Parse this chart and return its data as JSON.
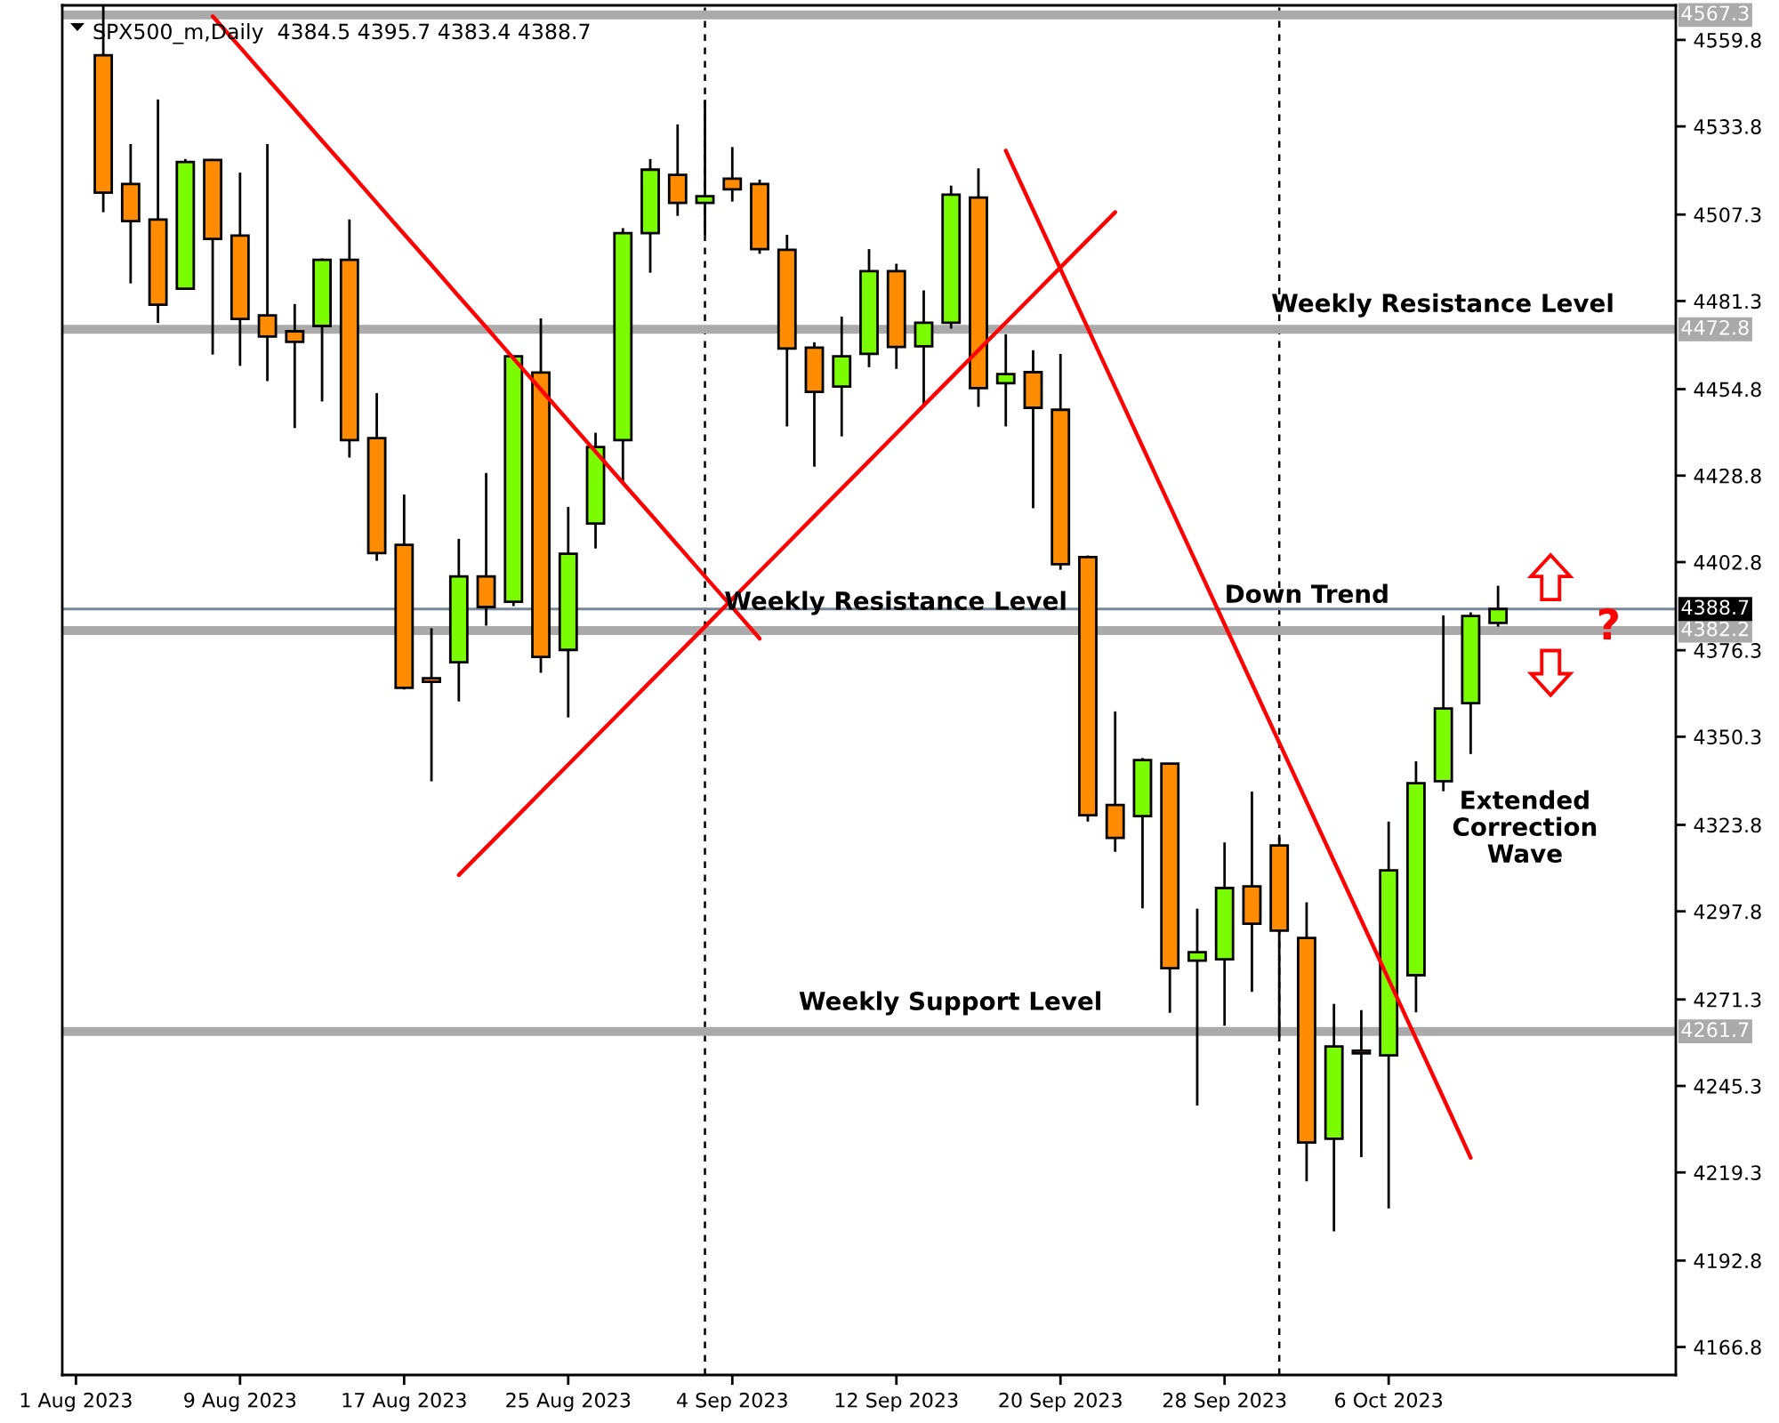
{
  "chart_data": {
    "type": "candlestick",
    "title": "SPX500_m,Daily  4384.5 4395.7 4383.4 4388.7",
    "categories": [
      "1 Aug 2023",
      null,
      null,
      null,
      null,
      null,
      "9 Aug 2023",
      null,
      null,
      null,
      null,
      null,
      "17 Aug 2023",
      null,
      null,
      null,
      null,
      null,
      "25 Aug 2023",
      null,
      null,
      null,
      null,
      null,
      "4 Sep 2023",
      null,
      null,
      null,
      null,
      null,
      "12 Sep 2023",
      null,
      null,
      null,
      null,
      null,
      "20 Sep 2023",
      null,
      null,
      null,
      null,
      null,
      "28 Sep 2023",
      null,
      null,
      null,
      null,
      null,
      "6 Oct 2023",
      null,
      null,
      null,
      null,
      null,
      null,
      null,
      null,
      null,
      null
    ],
    "ohlc": [
      null,
      [
        4555.2,
        4570.2,
        4508.0,
        4513.9
      ],
      [
        4516.5,
        4528.5,
        4486.6,
        4505.3
      ],
      [
        4505.8,
        4541.9,
        4474.7,
        4480.2
      ],
      [
        4485.0,
        4524.0,
        4485.0,
        4523.1
      ],
      [
        4523.7,
        4524.0,
        4465.2,
        4500.0
      ],
      [
        4501.0,
        4519.9,
        4461.8,
        4475.9
      ],
      [
        4477.0,
        4528.5,
        4457.2,
        4470.6
      ],
      [
        4472.2,
        4480.4,
        4443.1,
        4469.0
      ],
      [
        4473.8,
        4494.1,
        4451.1,
        4493.7
      ],
      [
        4493.7,
        4505.8,
        4434.2,
        4439.5
      ],
      [
        4440.1,
        4453.6,
        4403.2,
        4405.5
      ],
      [
        4408.0,
        4423.1,
        4364.5,
        4365.0
      ],
      [
        4367.9,
        4382.9,
        4336.9,
        4366.8
      ],
      [
        4372.7,
        4409.8,
        4360.9,
        4398.5
      ],
      [
        4398.5,
        4429.6,
        4383.7,
        4389.3
      ],
      [
        4390.9,
        4464.7,
        4389.6,
        4464.7
      ],
      [
        4459.8,
        4476.1,
        4369.5,
        4374.3
      ],
      [
        4376.4,
        4419.4,
        4356.1,
        4405.3
      ],
      [
        4414.4,
        4441.7,
        4406.9,
        4437.4
      ],
      [
        4439.5,
        4503.2,
        4426.9,
        4501.7
      ],
      [
        4501.7,
        4524.0,
        4489.8,
        4520.8
      ],
      [
        4519.2,
        4534.4,
        4506.9,
        4510.8
      ],
      [
        4510.8,
        4541.8,
        4501.2,
        4512.8
      ],
      [
        4518.1,
        4527.6,
        4511.2,
        4514.9
      ],
      [
        4516.5,
        4517.8,
        4495.5,
        4496.9
      ],
      [
        4496.7,
        4501.2,
        4443.6,
        4467.0
      ],
      [
        4467.3,
        4468.9,
        4431.5,
        4454.0
      ],
      [
        4455.6,
        4476.6,
        4440.6,
        4464.7
      ],
      [
        4465.4,
        4496.9,
        4461.4,
        4490.3
      ],
      [
        4490.3,
        4492.5,
        4460.9,
        4467.5
      ],
      [
        4467.7,
        4484.5,
        4449.9,
        4474.8
      ],
      [
        4474.8,
        4516.0,
        4473.0,
        4513.3
      ],
      [
        4512.4,
        4521.2,
        4449.5,
        4455.1
      ],
      [
        4456.6,
        4471.3,
        4443.6,
        4459.3
      ],
      [
        4459.9,
        4466.5,
        4419.0,
        4449.2
      ],
      [
        4448.6,
        4465.4,
        4400.5,
        4402.2
      ],
      [
        4404.3,
        4404.8,
        4324.8,
        4326.7
      ],
      [
        4329.8,
        4357.9,
        4315.7,
        4319.9
      ],
      [
        4326.4,
        4343.9,
        4298.7,
        4343.3
      ],
      [
        4342.2,
        4342.2,
        4267.3,
        4280.7
      ],
      [
        4283.0,
        4298.6,
        4239.4,
        4285.5
      ],
      [
        4283.4,
        4318.5,
        4263.4,
        4304.8
      ],
      [
        4305.3,
        4333.8,
        4273.6,
        4294.1
      ],
      [
        4317.6,
        4320.1,
        4260.0,
        4292.0
      ],
      [
        4289.8,
        4300.5,
        4216.6,
        4228.3
      ],
      [
        4229.4,
        4270.0,
        4201.6,
        4257.2
      ],
      [
        4255.9,
        4268.1,
        4223.9,
        4255.1
      ],
      [
        4254.5,
        4324.8,
        4208.5,
        4310.1
      ],
      [
        4278.6,
        4342.9,
        4267.4,
        4336.3
      ],
      [
        4336.9,
        4386.8,
        4333.9,
        4358.8
      ],
      [
        4360.4,
        4387.7,
        4345.1,
        4386.6
      ],
      [
        4384.5,
        4395.7,
        4383.4,
        4388.7
      ],
      null,
      null,
      null,
      null,
      null,
      null
    ],
    "colors": [
      null,
      "#ff8c00",
      "#ff8c00",
      "#ff8c00",
      "#7cfc00",
      "#ff8c00",
      "#ff8c00",
      "#ff8c00",
      "#ff8c00",
      "#7cfc00",
      "#ff8c00",
      "#ff8c00",
      "#ff8c00",
      "#ff8c00",
      "#7cfc00",
      "#ff8c00",
      "#7cfc00",
      "#ff8c00",
      "#7cfc00",
      "#7cfc00",
      "#7cfc00",
      "#7cfc00",
      "#ff8c00",
      "#7cfc00",
      "#ff8c00",
      "#ff8c00",
      "#ff8c00",
      "#ff8c00",
      "#7cfc00",
      "#7cfc00",
      "#ff8c00",
      "#7cfc00",
      "#7cfc00",
      "#ff8c00",
      "#7cfc00",
      "#ff8c00",
      "#ff8c00",
      "#ff8c00",
      "#ff8c00",
      "#7cfc00",
      "#ff8c00",
      "#7cfc00",
      "#7cfc00",
      "#ff8c00",
      "#ff8c00",
      "#ff8c00",
      "#7cfc00",
      "#ff8c00",
      "#7cfc00",
      "#7cfc00",
      "#7cfc00",
      "#7cfc00",
      "#7cfc00",
      null,
      null,
      null,
      null,
      null,
      null
    ],
    "series": [
      {
        "type": "line",
        "color": "#ff0000",
        "values": [
          null,
          null,
          null,
          null,
          null,
          4566.9,
          4557.6,
          4548.2,
          4538.9,
          4529.5,
          4520.2,
          4510.8,
          4501.4,
          4492.1,
          4482.7,
          4473.4,
          4464.0,
          4454.7,
          4445.3,
          4436.0,
          4426.6,
          4417.3,
          4407.9,
          4398.5,
          4389.2,
          4379.8,
          null,
          null,
          null,
          null,
          null,
          null,
          null,
          null,
          null,
          null,
          null,
          null,
          null,
          null,
          null,
          null,
          null,
          null,
          null,
          null,
          null,
          null,
          null,
          null,
          null,
          null,
          null,
          null,
          null,
          null,
          null,
          null,
          null
        ]
      },
      {
        "type": "line",
        "color": "#ff0000",
        "values": [
          null,
          null,
          null,
          null,
          null,
          null,
          null,
          null,
          null,
          null,
          null,
          null,
          null,
          null,
          4308.7,
          4317.0,
          4325.3,
          4333.6,
          4341.9,
          4350.2,
          4358.5,
          4366.8,
          4375.1,
          4383.4,
          4391.7,
          4400.0,
          4408.3,
          4416.6,
          4424.9,
          4433.2,
          4441.5,
          4449.9,
          4458.2,
          4466.5,
          4474.8,
          4483.1,
          4491.4,
          4499.7,
          4508.0,
          null,
          null,
          null,
          null,
          null,
          null,
          null,
          null,
          null,
          null,
          null,
          null,
          null,
          null,
          null,
          null,
          null,
          null,
          null,
          null
        ]
      },
      {
        "type": "line",
        "color": "#ff0000",
        "values": [
          null,
          null,
          null,
          null,
          null,
          null,
          null,
          null,
          null,
          null,
          null,
          null,
          null,
          null,
          null,
          null,
          null,
          null,
          null,
          null,
          null,
          null,
          null,
          null,
          null,
          null,
          null,
          null,
          null,
          null,
          null,
          null,
          null,
          null,
          4526.5,
          4508.7,
          4490.9,
          4473.1,
          4455.3,
          4437.5,
          4419.7,
          4401.9,
          4384.1,
          4366.3,
          4348.5,
          4330.7,
          4312.9,
          4295.1,
          4277.3,
          4259.5,
          4241.7,
          4223.7,
          null,
          null,
          null,
          null,
          null,
          null,
          null
        ]
      }
    ],
    "ref_lines": [
      {
        "axis": "y",
        "value": 4567.3,
        "label": "4567.3",
        "color": "#aaaaaa"
      },
      {
        "axis": "y",
        "value": 4472.8,
        "label": "4472.8",
        "color": "#aaaaaa"
      },
      {
        "axis": "y",
        "value": 4382.2,
        "label": "4382.2",
        "color": "#aaaaaa"
      },
      {
        "axis": "y",
        "value": 4261.7,
        "label": "4261.7",
        "color": "#aaaaaa"
      },
      {
        "axis": "y",
        "value": 4388.7,
        "label": "4388.7",
        "color": "#778899"
      }
    ],
    "annotations": [
      "Weekly Resistance Level",
      "Weekly Resistance Level",
      "Down Trend",
      "Weekly Support Level",
      "Extended\nCorrection\nWave",
      "?"
    ],
    "ylim": [
      4158.4,
      4570.2
    ],
    "yticks": [
      4166.8,
      4192.8,
      4219.3,
      4245.3,
      4271.3,
      4297.8,
      4323.8,
      4350.3,
      4376.3,
      4402.8,
      4428.8,
      4454.8,
      4481.3,
      4507.3,
      4533.8,
      4559.8
    ]
  }
}
